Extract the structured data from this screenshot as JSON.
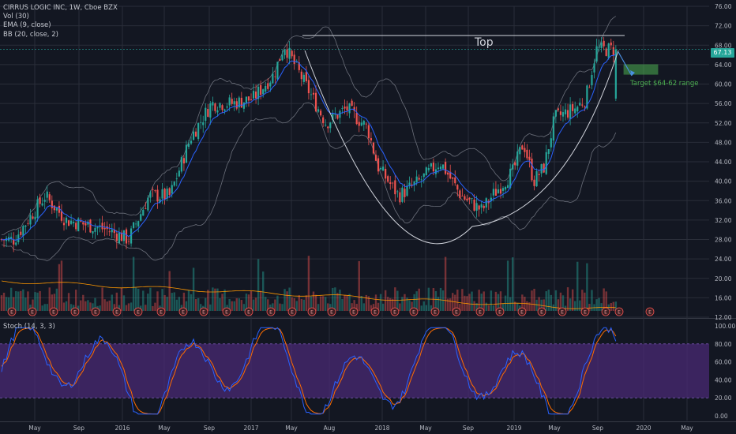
{
  "legend": {
    "symbol": "CIRRUS LOGIC INC, 1W, Cboe BZX",
    "vol": "Vol (30)",
    "ema": "EMA (9, close)",
    "bb": "BB (20, close, 2)"
  },
  "stoch_label": "Stoch (14, 3, 3)",
  "last_price": "67.13",
  "annotations": {
    "top": "Top",
    "target": "Target $64-62 range",
    "earnings_marker": "E"
  },
  "colors": {
    "background": "#131722",
    "grid": "#2a2e39",
    "up": "#26a69a",
    "down": "#ef5350",
    "ema": "#2962ff",
    "bollinger": "#6b6f7a",
    "stoch_band": "#4a2a74",
    "stoch_k": "#2962ff",
    "stoch_d": "#ff6d00",
    "target_box": "#4caf50",
    "vol_ma": "#ff9800"
  },
  "chart_data": [
    {
      "type": "candlestick",
      "title": "CIRRUS LOGIC INC, 1W, Cboe BZX",
      "interval": "1W",
      "x_tick_labels": [
        "May",
        "Sep",
        "2016",
        "May",
        "Sep",
        "2017",
        "May",
        "Aug",
        "2018",
        "May",
        "Sep",
        "2019",
        "May",
        "Sep",
        "2020",
        "May"
      ],
      "y_tick_labels": [
        "76.00",
        "72.00",
        "68.00",
        "64.00",
        "60.00",
        "56.00",
        "52.00",
        "48.00",
        "44.00",
        "40.00",
        "36.00",
        "32.00",
        "28.00",
        "24.00",
        "20.00",
        "16.00",
        "12.00"
      ],
      "ylim": [
        12,
        76
      ],
      "last_price": 67.13,
      "approx_close_path": [
        {
          "date": "2015-03",
          "close": 28
        },
        {
          "date": "2015-06",
          "close": 37
        },
        {
          "date": "2015-08",
          "close": 32
        },
        {
          "date": "2015-10",
          "close": 31
        },
        {
          "date": "2015-12",
          "close": 30
        },
        {
          "date": "2016-02",
          "close": 28
        },
        {
          "date": "2016-04",
          "close": 37
        },
        {
          "date": "2016-06",
          "close": 37
        },
        {
          "date": "2016-08",
          "close": 49
        },
        {
          "date": "2016-10",
          "close": 56
        },
        {
          "date": "2016-12",
          "close": 56
        },
        {
          "date": "2017-02",
          "close": 57
        },
        {
          "date": "2017-04",
          "close": 62
        },
        {
          "date": "2017-05",
          "close": 68
        },
        {
          "date": "2017-07",
          "close": 60
        },
        {
          "date": "2017-09",
          "close": 52
        },
        {
          "date": "2017-11",
          "close": 55
        },
        {
          "date": "2018-01",
          "close": 51
        },
        {
          "date": "2018-02",
          "close": 43
        },
        {
          "date": "2018-04",
          "close": 37
        },
        {
          "date": "2018-06",
          "close": 40
        },
        {
          "date": "2018-08",
          "close": 44
        },
        {
          "date": "2018-10",
          "close": 37
        },
        {
          "date": "2018-12",
          "close": 34
        },
        {
          "date": "2019-01",
          "close": 37
        },
        {
          "date": "2019-03",
          "close": 42
        },
        {
          "date": "2019-04",
          "close": 48
        },
        {
          "date": "2019-05",
          "close": 40
        },
        {
          "date": "2019-06",
          "close": 43
        },
        {
          "date": "2019-07",
          "close": 53
        },
        {
          "date": "2019-09",
          "close": 55
        },
        {
          "date": "2019-10",
          "close": 57
        },
        {
          "date": "2019-11",
          "close": 67.13
        }
      ],
      "annotations": [
        {
          "text": "Top",
          "level": 70
        },
        {
          "text": "Target $64-62 range",
          "range": [
            62,
            64
          ]
        }
      ]
    },
    {
      "type": "line",
      "title": "Stoch (14, 3, 3)",
      "y_tick_labels": [
        "100.00",
        "80.00",
        "60.00",
        "40.00",
        "20.00",
        "0.00"
      ],
      "ylim": [
        0,
        100
      ],
      "band": [
        20,
        80
      ]
    }
  ]
}
